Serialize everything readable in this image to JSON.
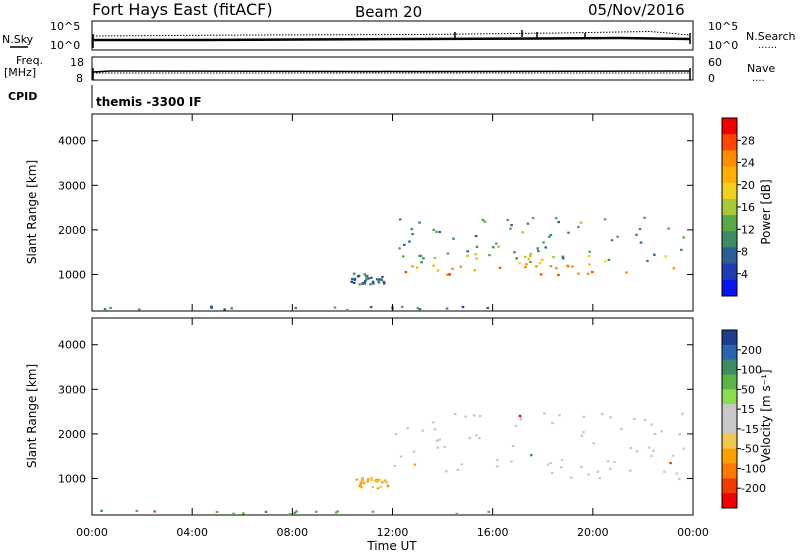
{
  "header": {
    "station": "Fort Hays East (fitACF)",
    "beam": "Beam 20",
    "date": "05/Nov/2016",
    "nsky_label": "N.Sky",
    "nsearch_label": "N.Search",
    "nsearch_suffix": "......",
    "freq_label": "Freq.",
    "freq_unit": "[MHz]",
    "nave_label": "Nave",
    "nave_suffix": "....",
    "cpid_label": "CPID",
    "cpid_value": "themis -3300 IF",
    "noise_ticks_left": [
      "10^5",
      "10^0"
    ],
    "noise_ticks_right": [
      "10^5",
      "10^0"
    ],
    "freq_ticks": [
      "18",
      "8"
    ],
    "nave_ticks": [
      "60",
      "0"
    ]
  },
  "axes": {
    "x_ticks": [
      "00:00",
      "04:00",
      "08:00",
      "12:00",
      "16:00",
      "20:00",
      "00:00"
    ],
    "x_label": "Time UT",
    "y_ticks": [
      "4000",
      "3000",
      "2000",
      "1000"
    ],
    "y_label": "Slant Range [km]"
  },
  "power_scale": {
    "label": "Power [dB]",
    "ticks": [
      "28",
      "24",
      "20",
      "16",
      "12",
      "8",
      "4"
    ],
    "colors": [
      "#f00000",
      "#ff4500",
      "#ff8c00",
      "#ffb000",
      "#f0d020",
      "#a8c838",
      "#58a848",
      "#3c8c64",
      "#2e5e96",
      "#1e3cb4",
      "#0a14f0"
    ]
  },
  "velocity_scale": {
    "label": "Velocity [m s⁻¹]",
    "ticks": [
      "200",
      "100",
      "50",
      "15",
      "-15",
      "-50",
      "-100",
      "-200"
    ],
    "colors": [
      "#1c3c8c",
      "#2c64b0",
      "#3c8c64",
      "#5ab446",
      "#8cdc50",
      "#c8c8c8",
      "#c8c8c8",
      "#f0c850",
      "#ffa000",
      "#ff7800",
      "#f03c00",
      "#f00000"
    ]
  },
  "chart_data": [
    {
      "type": "heatmap",
      "title": "Power",
      "x_range_hours": [
        0,
        24
      ],
      "y_range_km": [
        180,
        4600
      ],
      "colorbar": "Power [dB]",
      "features": [
        {
          "t_start": 12.2,
          "t_end": 23.7,
          "range_min_km": 1000,
          "range_max_km": 1500,
          "power_db": 26
        },
        {
          "t_start": 12.0,
          "t_end": 23.9,
          "range_min_km": 1300,
          "range_max_km": 2300,
          "power_db": 10
        },
        {
          "t_start": 10.3,
          "t_end": 11.7,
          "range_min_km": 800,
          "range_max_km": 1050,
          "power_db": 7
        },
        {
          "t_start": 0.0,
          "t_end": 16.0,
          "range_min_km": 180,
          "range_max_km": 300,
          "power_db": 8
        }
      ]
    },
    {
      "type": "heatmap",
      "title": "Velocity",
      "x_range_hours": [
        0,
        24
      ],
      "y_range_km": [
        180,
        4600
      ],
      "colorbar": "Velocity [m s-1]",
      "features": [
        {
          "t_start": 12.0,
          "t_end": 23.8,
          "range_min_km": 1000,
          "range_max_km": 2500,
          "velocity_ms": 0
        },
        {
          "t_start": 10.5,
          "t_end": 11.8,
          "range_min_km": 800,
          "range_max_km": 1050,
          "velocity_ms": -40
        },
        {
          "t_start": 0.0,
          "t_end": 16.0,
          "range_min_km": 180,
          "range_max_km": 300,
          "velocity_ms": 25
        }
      ]
    }
  ]
}
